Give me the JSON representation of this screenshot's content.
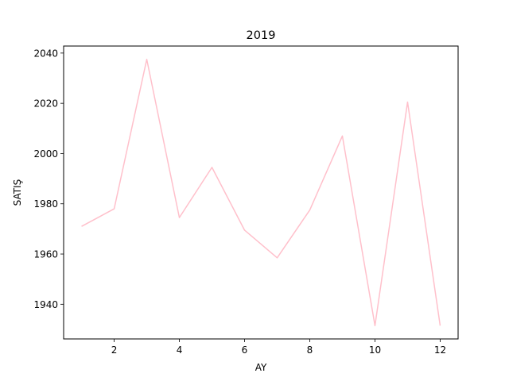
{
  "chart_data": {
    "type": "line",
    "title": "2019",
    "xlabel": "AY",
    "ylabel": "SATIŞ",
    "x": [
      1,
      2,
      3,
      4,
      5,
      6,
      7,
      8,
      9,
      10,
      11,
      12
    ],
    "series": [
      {
        "color": "#ffc0cb",
        "values": [
          1971,
          1978,
          2037.5,
          1974.5,
          1994.5,
          1969.5,
          1958.5,
          1977.5,
          2007,
          1931.5,
          2020.5,
          1931.5
        ]
      }
    ],
    "xlim": [
      0.45,
      12.55
    ],
    "ylim": [
      1926.2,
      2042.8
    ],
    "xticks": [
      "2",
      "4",
      "6",
      "8",
      "10",
      "12"
    ],
    "yticks": [
      "1940",
      "1960",
      "1980",
      "2000",
      "2020",
      "2040"
    ],
    "grid": false,
    "legend": "none"
  }
}
